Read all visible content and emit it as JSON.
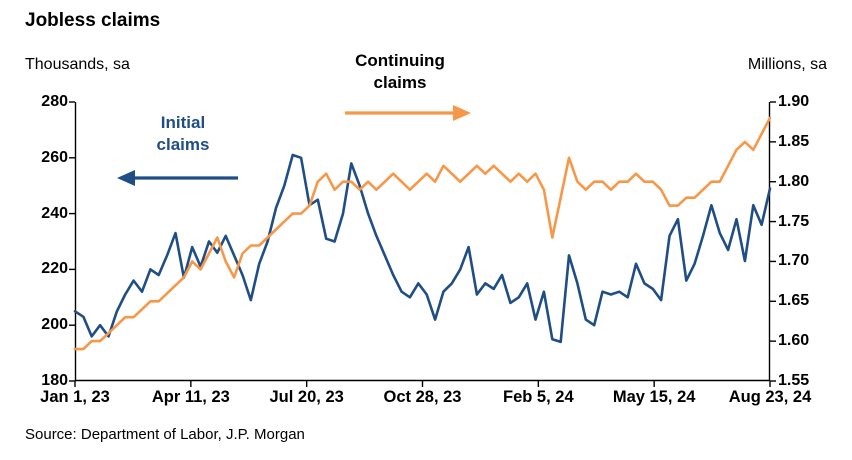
{
  "title": "Jobless claims",
  "axis_titles": {
    "left": "Thousands, sa",
    "right": "Millions, sa"
  },
  "source": "Source: Department of Labor, J.P. Morgan",
  "annotations": {
    "initial": {
      "label": "Initial\nclaims",
      "color": "#1F4E86"
    },
    "continuing": {
      "label": "Continuing\nclaims",
      "color": "#000000",
      "arrow_color": "#F79748"
    }
  },
  "chart_data": {
    "type": "line",
    "title": "Jobless claims",
    "x_tick_labels": [
      "Jan 1, 23",
      "Apr 11, 23",
      "Jul 20, 23",
      "Oct 28, 23",
      "Feb 5, 24",
      "May 15, 24",
      "Aug 23, 24"
    ],
    "left_axis": {
      "label": "Thousands, sa",
      "min": 180,
      "max": 280,
      "step": 20,
      "tick_labels": [
        "180",
        "200",
        "220",
        "240",
        "260",
        "280"
      ]
    },
    "right_axis": {
      "label": "Millions, sa",
      "min": 1.55,
      "max": 1.9,
      "step": 0.05,
      "tick_labels": [
        "1.55",
        "1.60",
        "1.65",
        "1.70",
        "1.75",
        "1.80",
        "1.85",
        "1.90"
      ]
    },
    "grid": false,
    "legend": "annotated arrows",
    "series": [
      {
        "name": "Initial claims",
        "axis": "left",
        "color": "#1F4E86",
        "values": [
          205,
          203,
          196,
          200,
          196,
          205,
          211,
          216,
          212,
          220,
          218,
          225,
          233,
          217,
          228,
          221,
          230,
          226,
          232,
          225,
          218,
          209,
          222,
          230,
          242,
          250,
          261,
          260,
          243,
          245,
          231,
          230,
          240,
          258,
          250,
          240,
          232,
          225,
          218,
          212,
          210,
          215,
          211,
          202,
          212,
          215,
          220,
          228,
          211,
          215,
          213,
          218,
          208,
          210,
          215,
          202,
          212,
          195,
          194,
          225,
          215,
          202,
          200,
          212,
          211,
          212,
          210,
          222,
          215,
          213,
          209,
          232,
          238,
          216,
          222,
          232,
          243,
          233,
          227,
          238,
          223,
          243,
          236,
          249
        ]
      },
      {
        "name": "Continuing claims",
        "axis": "right",
        "color": "#F79748",
        "values": [
          1.59,
          1.59,
          1.6,
          1.6,
          1.61,
          1.62,
          1.63,
          1.63,
          1.64,
          1.65,
          1.65,
          1.66,
          1.67,
          1.68,
          1.7,
          1.69,
          1.71,
          1.73,
          1.7,
          1.68,
          1.71,
          1.72,
          1.72,
          1.73,
          1.74,
          1.75,
          1.76,
          1.76,
          1.77,
          1.8,
          1.81,
          1.79,
          1.8,
          1.8,
          1.79,
          1.8,
          1.79,
          1.8,
          1.81,
          1.8,
          1.79,
          1.8,
          1.81,
          1.8,
          1.82,
          1.81,
          1.8,
          1.81,
          1.82,
          1.81,
          1.82,
          1.81,
          1.8,
          1.81,
          1.8,
          1.81,
          1.79,
          1.73,
          1.78,
          1.83,
          1.8,
          1.79,
          1.8,
          1.8,
          1.79,
          1.8,
          1.8,
          1.81,
          1.8,
          1.8,
          1.79,
          1.77,
          1.77,
          1.78,
          1.78,
          1.79,
          1.8,
          1.8,
          1.82,
          1.84,
          1.85,
          1.84,
          1.86,
          1.88
        ]
      }
    ]
  }
}
